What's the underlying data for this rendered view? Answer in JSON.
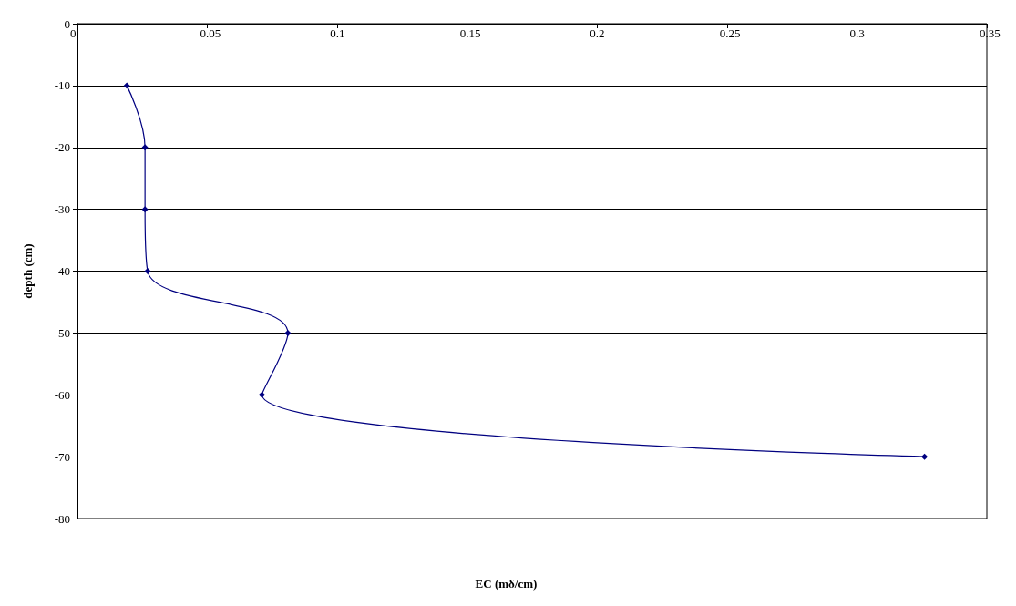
{
  "chart_data": {
    "type": "line",
    "xlabel": "EC (mδ/cm)",
    "ylabel": "depth (cm)",
    "x": [
      0.019,
      0.026,
      0.026,
      0.027,
      0.081,
      0.071,
      0.326
    ],
    "series": [
      {
        "color": "#000080",
        "values": [
          -10,
          -20,
          -30,
          -40,
          -50,
          -60,
          -70
        ]
      }
    ],
    "xlim": [
      0,
      0.35
    ],
    "xticks": [
      0,
      0.05,
      0.1,
      0.15,
      0.2,
      0.25,
      0.3,
      0.35
    ],
    "ylim": [
      -80,
      0
    ],
    "yticks": [
      -80,
      -70,
      -60,
      -50,
      -40,
      -30,
      -20,
      -10,
      0
    ],
    "grid": "y",
    "marker": "diamond",
    "line_style": "solid"
  }
}
